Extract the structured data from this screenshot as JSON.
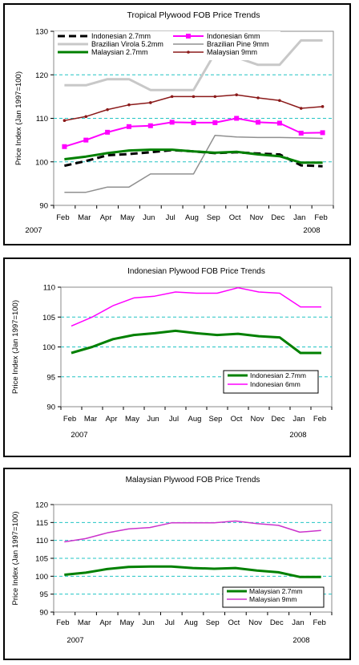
{
  "chart_data": [
    {
      "type": "line",
      "title": "Tropical Plywood FOB Price Trends",
      "ylabel": "Price Index (Jan 1997=100)",
      "categories": [
        "Feb",
        "Mar",
        "Apr",
        "May",
        "Jun",
        "Jul",
        "Aug",
        "Sep",
        "Oct",
        "Nov",
        "Dec",
        "Jan",
        "Feb"
      ],
      "year_labels": [
        "2007",
        "2008"
      ],
      "ylim": [
        90,
        130
      ],
      "yticks": [
        90,
        100,
        110,
        120,
        130
      ],
      "grid": "dashed cyan horizontal",
      "legend_placement": "top",
      "series": [
        {
          "name": "Indonesian 2.7mm",
          "color": "#000000",
          "dash": true,
          "values": [
            99.1,
            100.2,
            101.5,
            101.8,
            102.2,
            102.7,
            102.4,
            102.0,
            102.2,
            101.9,
            101.7,
            99.2,
            99.0
          ]
        },
        {
          "name": "Indonesian 6mm",
          "color": "#ff00ff",
          "marker": "square",
          "values": [
            103.5,
            105.0,
            106.8,
            108.1,
            108.3,
            109.1,
            109.0,
            109.0,
            110.0,
            109.1,
            108.9,
            106.6,
            106.7
          ]
        },
        {
          "name": "Brazilian Virola 5.2mm",
          "color": "#c8c8c8",
          "values": [
            117.6,
            117.6,
            119.0,
            119.0,
            116.5,
            116.5,
            116.5,
            125.0,
            124.0,
            122.3,
            122.3,
            127.9,
            127.9
          ]
        },
        {
          "name": "Brazilian Pine 9mm",
          "color": "#909090",
          "values": [
            93.0,
            93.0,
            94.2,
            94.2,
            97.2,
            97.2,
            97.2,
            106.1,
            105.7,
            105.6,
            105.6,
            105.5,
            105.4
          ]
        },
        {
          "name": "Malaysian 2.7mm",
          "color": "#008000",
          "values": [
            100.6,
            101.2,
            102.0,
            102.6,
            102.8,
            102.8,
            102.4,
            102.1,
            102.3,
            101.7,
            101.3,
            99.8,
            99.8
          ]
        },
        {
          "name": "Malaysian 9mm",
          "color": "#8b1a1a",
          "marker": "dot",
          "values": [
            109.5,
            110.4,
            112.0,
            113.1,
            113.6,
            115.0,
            115.0,
            115.0,
            115.4,
            114.7,
            114.1,
            112.3,
            112.7
          ]
        }
      ]
    },
    {
      "type": "line",
      "title": "Indonesian Plywood FOB Price Trends",
      "ylabel": "Price Index (Jan 1997=100)",
      "categories": [
        "Feb",
        "Mar",
        "Apr",
        "May",
        "Jun",
        "Jul",
        "Aug",
        "Sep",
        "Oct",
        "Nov",
        "Dec",
        "Jan",
        "Feb"
      ],
      "year_labels": [
        "2007",
        "2008"
      ],
      "ylim": [
        90,
        110
      ],
      "yticks": [
        90,
        95,
        100,
        105,
        110
      ],
      "grid": "dashed cyan horizontal",
      "legend_placement": "bottom-right",
      "series": [
        {
          "name": "Indonesian 2.7mm",
          "color": "#008000",
          "values": [
            99.0,
            100.0,
            101.3,
            102.0,
            102.3,
            102.7,
            102.3,
            102.0,
            102.2,
            101.8,
            101.6,
            99.0,
            99.0
          ]
        },
        {
          "name": "Indonesian 6mm",
          "color": "#ff00ff",
          "values": [
            103.5,
            105.0,
            106.9,
            108.2,
            108.5,
            109.2,
            109.0,
            109.0,
            109.9,
            109.2,
            109.0,
            106.7,
            106.7
          ]
        }
      ]
    },
    {
      "type": "line",
      "title": "Malaysian Plywood FOB Price Trends",
      "ylabel": "Price Index (Jan 1997=100)",
      "categories": [
        "Feb",
        "Mar",
        "Apr",
        "May",
        "Jun",
        "Jul",
        "Aug",
        "Sep",
        "Oct",
        "Nov",
        "Dec",
        "Jan",
        "Feb"
      ],
      "year_labels": [
        "2007",
        "2008"
      ],
      "ylim": [
        90,
        120
      ],
      "yticks": [
        90,
        95,
        100,
        105,
        110,
        115,
        120
      ],
      "grid": "dashed cyan horizontal",
      "legend_placement": "bottom-right",
      "series": [
        {
          "name": "Malaysian 2.7mm",
          "color": "#008000",
          "values": [
            100.4,
            101.0,
            102.0,
            102.6,
            102.7,
            102.7,
            102.3,
            102.1,
            102.3,
            101.6,
            101.1,
            99.8,
            99.8
          ]
        },
        {
          "name": "Malaysian 9mm",
          "color": "#cc33cc",
          "values": [
            109.6,
            110.5,
            112.1,
            113.2,
            113.6,
            114.9,
            114.9,
            114.9,
            115.4,
            114.7,
            114.2,
            112.3,
            112.8
          ]
        }
      ]
    }
  ]
}
